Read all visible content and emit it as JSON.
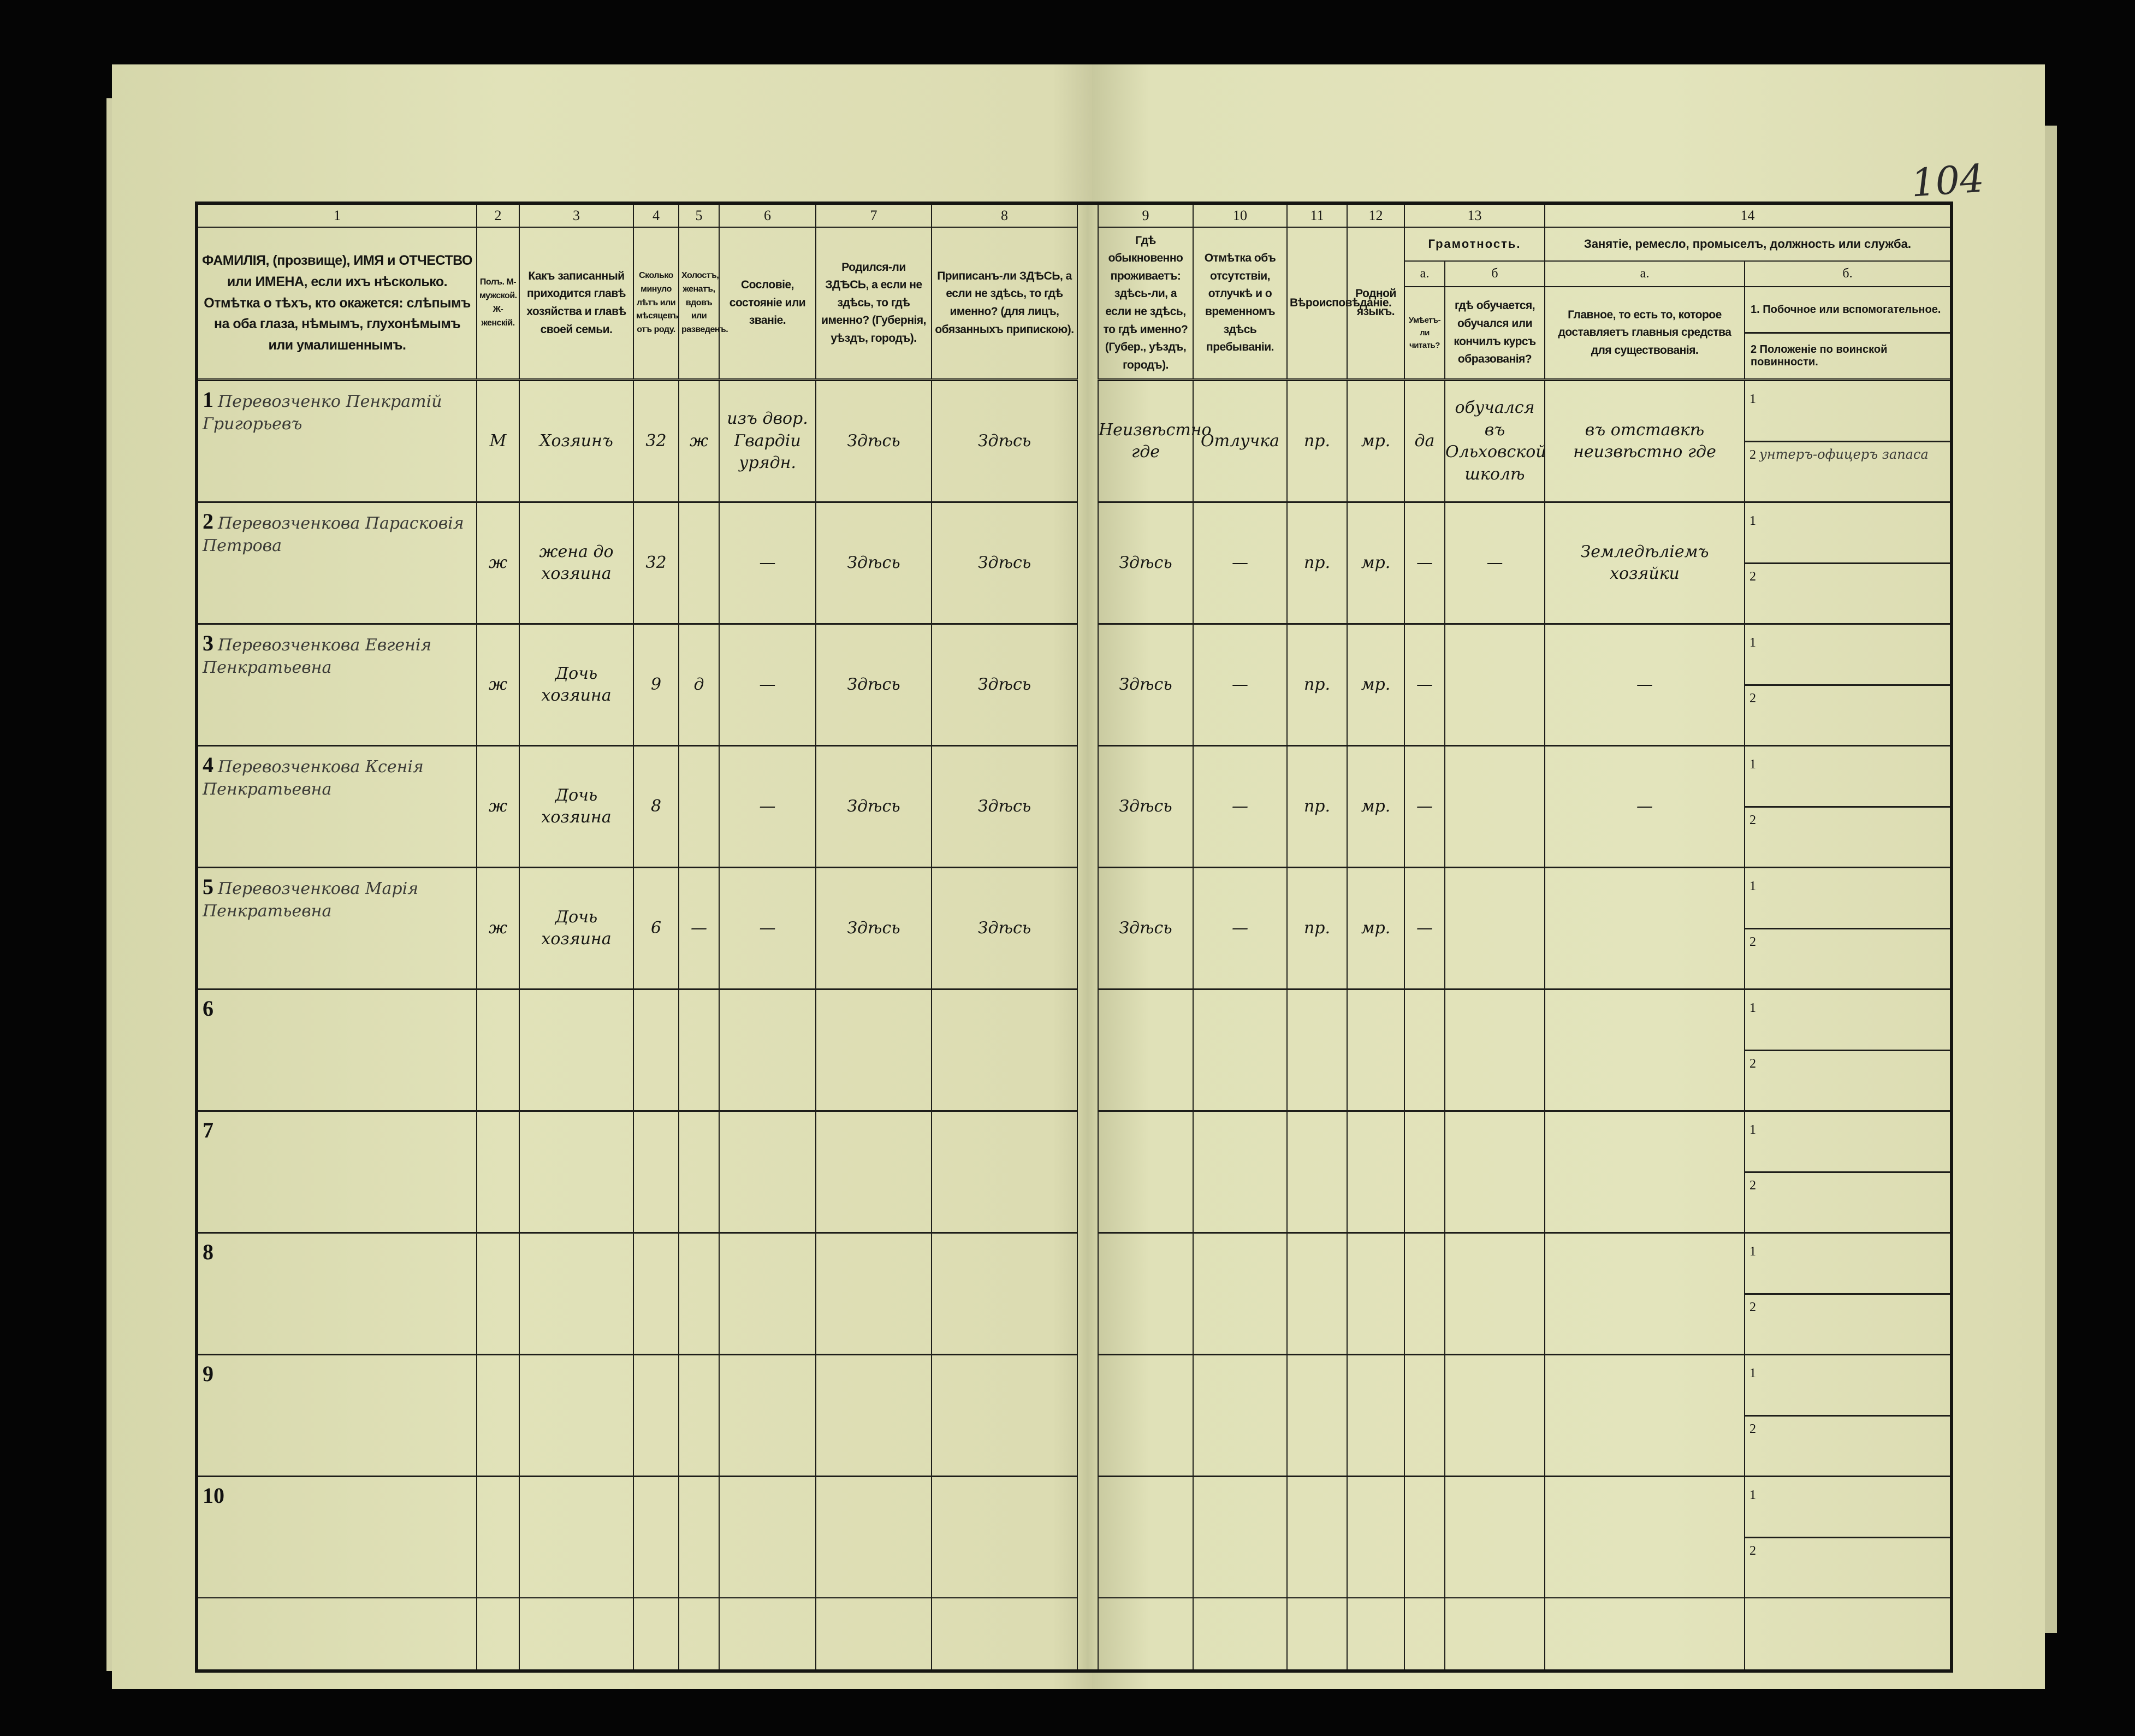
{
  "page_number": "104",
  "headers": {
    "numbers": [
      "1",
      "2",
      "3",
      "4",
      "5",
      "6",
      "7",
      "8",
      "9",
      "10",
      "11",
      "12",
      "13",
      "14"
    ],
    "c1": "ФАМИЛІЯ, (прозвище), ИМЯ и ОТЧЕСТВО или ИМЕНА, если ихъ нѣсколько. Отмѣтка о тѣхъ, кто окажется: слѣпымъ на оба глаза, нѣмымъ, глухонѣмымъ или умалишеннымъ.",
    "c2": "Полъ. М-мужской. Ж-женскій.",
    "c3": "Какъ записанный приходится главѣ хозяйства и главѣ своей семьи.",
    "c4": "Сколько минуло лѣтъ или мѣсяцевъ отъ роду.",
    "c5": "Холостъ, женатъ, вдовъ или разведенъ.",
    "c6": "Сословіе, состояніе или званіе.",
    "c7": "Родился-ли ЗДѢСЬ, а если не здѣсь, то гдѣ именно? (Губернія, уѣздъ, городъ).",
    "c8": "Приписанъ-ли ЗДѢСЬ, а если не здѣсь, то гдѣ именно? (для лицъ, обязанныхъ припискою).",
    "c9": "Гдѣ обыкновенно проживаетъ: здѣсь-ли, а если не здѣсь, то гдѣ именно? (Губер., уѣздъ, городъ).",
    "c10": "Отмѣтка объ отсутствіи, отлучкѣ и о временномъ здѣсь пребываніи.",
    "c11": "Вѣроисповѣданіе.",
    "c12": "Родной языкъ.",
    "c13_title": "Грамотность.",
    "c13a_letter": "а.",
    "c13b_letter": "б",
    "c13a": "Умѣетъ-ли читать?",
    "c13b": "гдѣ обучается, обучался или кончилъ курсъ образованія?",
    "c14_title": "Занятіе, ремесло, промыселъ, должность или служба.",
    "c14a_letter": "а.",
    "c14b_letter": "б.",
    "c14a": "Главное, то есть то, которое доставляетъ главныя средства для существованія.",
    "c14b_1": "1. Побочное или вспомогательное.",
    "c14b_2": "2 Положеніе по воинской повинности."
  },
  "sub_labels": [
    "1",
    "2"
  ],
  "rows": [
    {
      "no": "1",
      "name": "Перевозченко Пенкратій Григорьевъ",
      "sex": "М",
      "relation": "Хозяинъ",
      "age": "32",
      "marital": "ж",
      "estate": "изъ двор. Гвардіи урядн.",
      "birthplace": "Здѣсь",
      "registered": "Здѣсь",
      "residence": "Неизвѣстно где",
      "absence": "Отлучка",
      "religion": "пр.",
      "language": "мр.",
      "literate": "да",
      "school": "обучался въ Ольховской школѣ",
      "occupation_main": "въ отставкѣ неизвѣстно где",
      "occupation_side": "",
      "military": "унтеръ-офицеръ запаса"
    },
    {
      "no": "2",
      "name": "Перевозченкова Парасковія Петрова",
      "sex": "ж",
      "relation": "жена до хозяина",
      "age": "32",
      "marital": "",
      "estate": "—",
      "birthplace": "Здѣсь",
      "registered": "Здѣсь",
      "residence": "Здѣсь",
      "absence": "—",
      "religion": "пр.",
      "language": "мр.",
      "literate": "—",
      "school": "—",
      "occupation_main": "Земледѣліемъ хозяйки",
      "occupation_side": "",
      "military": ""
    },
    {
      "no": "3",
      "name": "Перевозченкова Евгенія Пенкратьевна",
      "sex": "ж",
      "relation": "Дочь хозяина",
      "age": "9",
      "marital": "д",
      "estate": "—",
      "birthplace": "Здѣсь",
      "registered": "Здѣсь",
      "residence": "Здѣсь",
      "absence": "—",
      "religion": "пр.",
      "language": "мр.",
      "literate": "—",
      "school": "",
      "occupation_main": "—",
      "occupation_side": "",
      "military": ""
    },
    {
      "no": "4",
      "name": "Перевозченкова Ксенія Пенкратьевна",
      "sex": "ж",
      "relation": "Дочь хозяина",
      "age": "8",
      "marital": "",
      "estate": "—",
      "birthplace": "Здѣсь",
      "registered": "Здѣсь",
      "residence": "Здѣсь",
      "absence": "—",
      "religion": "пр.",
      "language": "мр.",
      "literate": "—",
      "school": "",
      "occupation_main": "—",
      "occupation_side": "",
      "military": ""
    },
    {
      "no": "5",
      "name": "Перевозченкова Марія Пенкратьевна",
      "sex": "ж",
      "relation": "Дочь хозяина",
      "age": "6",
      "marital": "—",
      "estate": "—",
      "birthplace": "Здѣсь",
      "registered": "Здѣсь",
      "residence": "Здѣсь",
      "absence": "—",
      "religion": "пр.",
      "language": "мр.",
      "literate": "—",
      "school": "",
      "occupation_main": "",
      "occupation_side": "",
      "military": ""
    },
    {
      "no": "6"
    },
    {
      "no": "7"
    },
    {
      "no": "8"
    },
    {
      "no": "9"
    },
    {
      "no": "10"
    }
  ]
}
